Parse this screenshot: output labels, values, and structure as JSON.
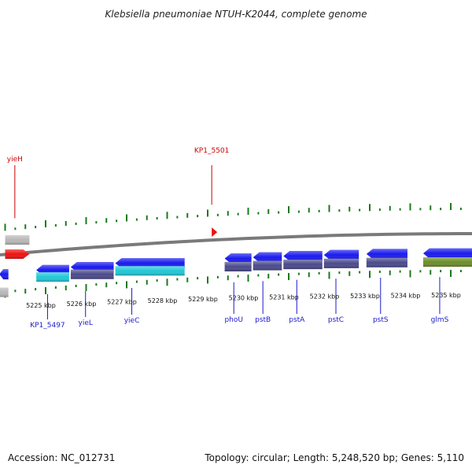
{
  "title": "Klebsiella pneumoniae NTUH-K2044, complete genome",
  "footer": {
    "accession": "Accession: NC_012731",
    "summary": "Topology: circular; Length: 5,248,520 bp; Genes: 5,110"
  },
  "colors": {
    "blue": "#1a1aee",
    "cyan": "#22c8d6",
    "slate": "#4a4a8c",
    "olive": "#6c8e2a",
    "red": "#ee1111",
    "grey": "#b8b8b8",
    "tick": "#1a7a1a",
    "label_top": "#cc0000",
    "label_bottom": "#1a1acc",
    "backbone": "#7a7a7a"
  },
  "scale": {
    "unit": "kbp",
    "ticks": [
      {
        "kbp": 5225,
        "label": "5225 kbp"
      },
      {
        "kbp": 5226,
        "label": "5226 kbp"
      },
      {
        "kbp": 5227,
        "label": "5227 kbp"
      },
      {
        "kbp": 5228,
        "label": "5228 kbp"
      },
      {
        "kbp": 5229,
        "label": "5229 kbp"
      },
      {
        "kbp": 5230,
        "label": "5230 kbp"
      },
      {
        "kbp": 5231,
        "label": "5231 kbp"
      },
      {
        "kbp": 5232,
        "label": "5232 kbp"
      },
      {
        "kbp": 5233,
        "label": "5233 kbp"
      },
      {
        "kbp": 5234,
        "label": "5234 kbp"
      },
      {
        "kbp": 5235,
        "label": "5235 kbp"
      }
    ]
  },
  "genes_top": [
    {
      "name": "yieH",
      "start": 5224.0,
      "end": 5224.6,
      "strand": "+",
      "color": "red",
      "label": true
    },
    {
      "name": "",
      "start": 5224.0,
      "end": 5224.6,
      "strand": "none",
      "color": "grey",
      "label": false
    },
    {
      "name": "KP1_5501",
      "start": 5229.1,
      "end": 5229.2,
      "strand": "+",
      "color": "red",
      "label": true
    }
  ],
  "genes_bottom": [
    {
      "name": "",
      "start": 5223.8,
      "end": 5224.1,
      "strand": "-",
      "color": "blue",
      "label": false
    },
    {
      "name": "",
      "start": 5223.8,
      "end": 5224.1,
      "strand": "none",
      "color": "grey",
      "label": false
    },
    {
      "name": "KP1_5497",
      "start": 5224.75,
      "end": 5225.6,
      "strand": "-",
      "color": "blue",
      "label": true
    },
    {
      "name": "yieL",
      "start": 5225.6,
      "end": 5226.7,
      "strand": "-",
      "color": "blue",
      "label": true
    },
    {
      "name": "yieC",
      "start": 5226.7,
      "end": 5228.45,
      "strand": "-",
      "color": "blue",
      "label": true
    },
    {
      "name": "phoU",
      "start": 5229.4,
      "end": 5230.1,
      "strand": "-",
      "color": "blue",
      "label": true
    },
    {
      "name": "pstB",
      "start": 5230.1,
      "end": 5230.85,
      "strand": "-",
      "color": "blue",
      "label": true
    },
    {
      "name": "pstA",
      "start": 5230.85,
      "end": 5231.85,
      "strand": "-",
      "color": "blue",
      "label": true
    },
    {
      "name": "pstC",
      "start": 5231.85,
      "end": 5232.75,
      "strand": "-",
      "color": "blue",
      "label": true
    },
    {
      "name": "pstS",
      "start": 5232.9,
      "end": 5233.95,
      "strand": "-",
      "color": "blue",
      "label": true
    },
    {
      "name": "glmS",
      "start": 5234.3,
      "end": 5236.0,
      "strand": "-",
      "color": "blue",
      "label": true
    }
  ],
  "features_bottom": [
    {
      "start": 5224.75,
      "end": 5225.6,
      "color": "cyan"
    },
    {
      "start": 5225.6,
      "end": 5226.7,
      "color": "slate"
    },
    {
      "start": 5226.7,
      "end": 5228.45,
      "color": "cyan"
    },
    {
      "start": 5229.4,
      "end": 5230.1,
      "color": "slate"
    },
    {
      "start": 5230.1,
      "end": 5230.85,
      "color": "slate"
    },
    {
      "start": 5230.85,
      "end": 5231.85,
      "color": "slate"
    },
    {
      "start": 5231.85,
      "end": 5232.75,
      "color": "slate"
    },
    {
      "start": 5232.9,
      "end": 5233.95,
      "color": "slate"
    },
    {
      "start": 5234.3,
      "end": 5236.0,
      "color": "olive"
    }
  ]
}
